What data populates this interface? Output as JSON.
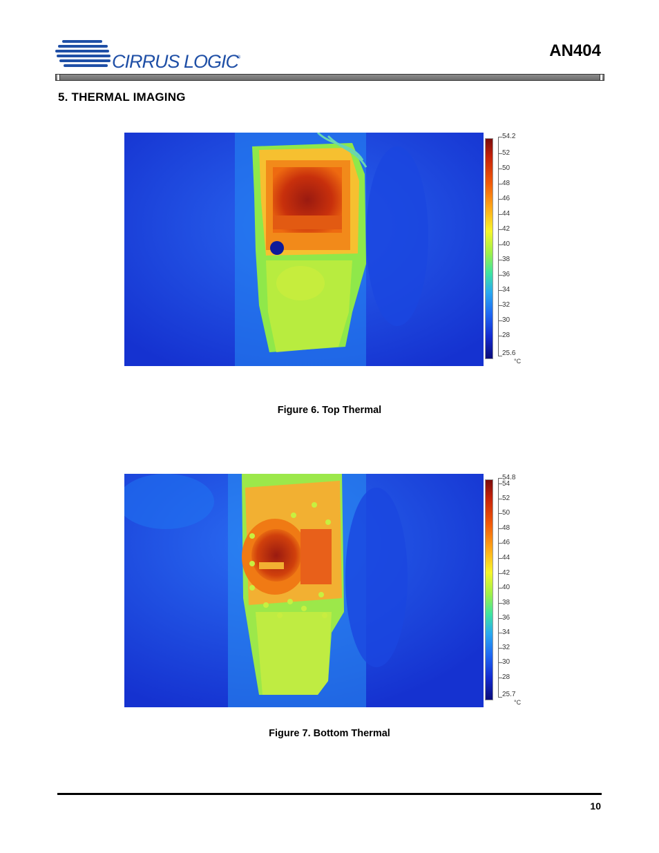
{
  "header": {
    "logo_text": "CIRRUS LOGIC",
    "logo_reg": "®",
    "doc_id": "AN404"
  },
  "section": {
    "title": "5.  THERMAL IMAGING"
  },
  "figures": [
    {
      "caption": "Figure 6.  Top Thermal",
      "scale_max": "54.2",
      "scale_labels": [
        "52",
        "50",
        "48",
        "46",
        "44",
        "42",
        "40",
        "38",
        "36",
        "34",
        "32",
        "30",
        "28"
      ],
      "scale_min": "25.6",
      "unit": "°C"
    },
    {
      "caption": "Figure 7.  Bottom Thermal",
      "scale_max": "54.8",
      "scale_labels": [
        "54",
        "52",
        "50",
        "48",
        "46",
        "44",
        "42",
        "40",
        "38",
        "36",
        "34",
        "32",
        "30",
        "28"
      ],
      "scale_min": "25.7",
      "unit": "°C"
    }
  ],
  "colors": {
    "brand_blue": "#1f4fa6",
    "thermal_bg": "#1635d8"
  },
  "footer": {
    "page_number": "10"
  }
}
